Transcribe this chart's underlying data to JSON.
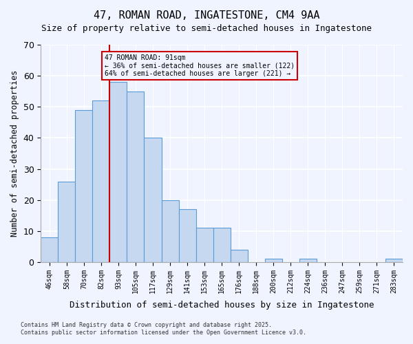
{
  "title1": "47, ROMAN ROAD, INGATESTONE, CM4 9AA",
  "title2": "Size of property relative to semi-detached houses in Ingatestone",
  "xlabel": "Distribution of semi-detached houses by size in Ingatestone",
  "ylabel": "Number of semi-detached properties",
  "bar_labels": [
    "46sqm",
    "58sqm",
    "70sqm",
    "82sqm",
    "93sqm",
    "105sqm",
    "117sqm",
    "129sqm",
    "141sqm",
    "153sqm",
    "165sqm",
    "176sqm",
    "188sqm",
    "200sqm",
    "212sqm",
    "224sqm",
    "236sqm",
    "247sqm",
    "259sqm",
    "271sqm",
    "283sqm"
  ],
  "bar_values": [
    8,
    26,
    49,
    52,
    58,
    55,
    40,
    20,
    17,
    11,
    11,
    4,
    0,
    1,
    0,
    1,
    0,
    0,
    0,
    0,
    1
  ],
  "bar_color": "#c5d8f0",
  "bar_edge_color": "#5b9bd5",
  "ylim": [
    0,
    70
  ],
  "yticks": [
    0,
    10,
    20,
    30,
    40,
    50,
    60,
    70
  ],
  "vline_x": 4,
  "vline_color": "#cc0000",
  "annotation_title": "47 ROMAN ROAD: 91sqm",
  "annotation_line1": "← 36% of semi-detached houses are smaller (122)",
  "annotation_line2": "64% of semi-detached houses are larger (221) →",
  "annotation_box_color": "#cc0000",
  "annotation_text_color": "#000000",
  "footnote1": "Contains HM Land Registry data © Crown copyright and database right 2025.",
  "footnote2": "Contains public sector information licensed under the Open Government Licence v3.0.",
  "background_color": "#f0f4ff"
}
